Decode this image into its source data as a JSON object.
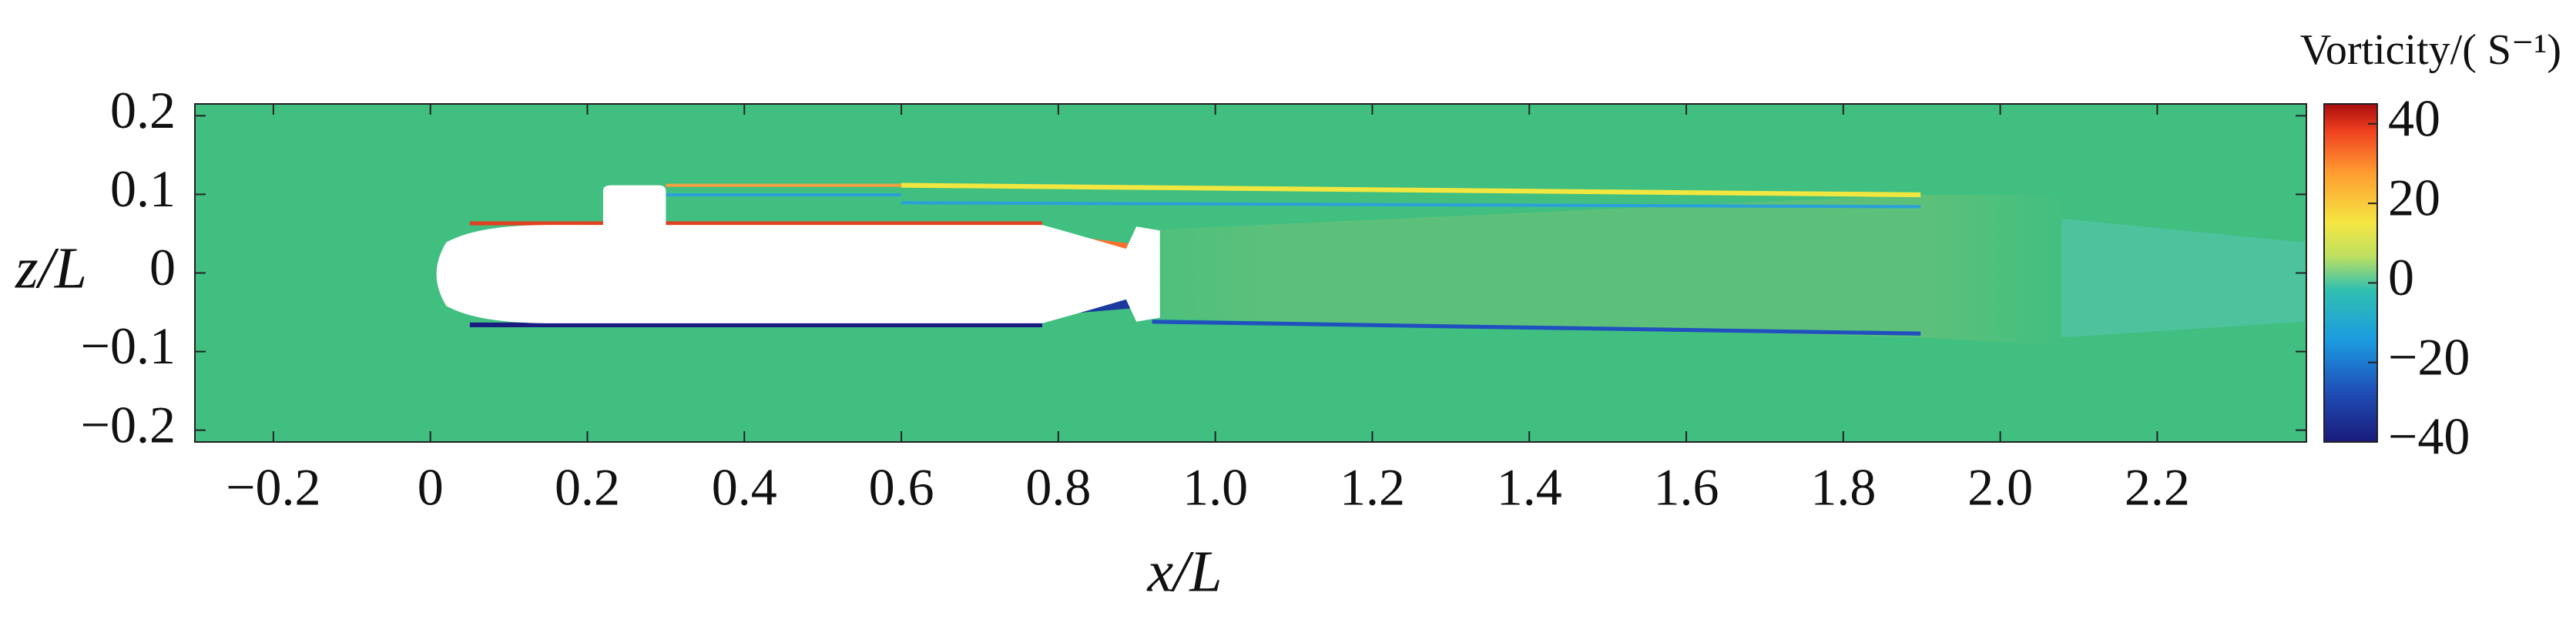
{
  "chart_data": {
    "type": "contour",
    "xlabel": "x/L",
    "ylabel": "z/L",
    "xlim": [
      -0.3,
      2.39
    ],
    "ylim": [
      -0.215,
      0.215
    ],
    "xticks": [
      {
        "value": -0.2,
        "label": "−0.2"
      },
      0,
      0.2,
      0.4,
      0.6,
      0.8,
      {
        "value": 1,
        "label": "1.0"
      },
      1.2,
      1.4,
      1.6,
      1.8,
      {
        "value": 2,
        "label": "2.0"
      },
      2.2
    ],
    "yticks": [
      {
        "value": -0.2,
        "label": "−0.2"
      },
      {
        "value": -0.1,
        "label": "−0.1"
      },
      0,
      0.1,
      0.2
    ],
    "colorbar": {
      "title": "Vorticity/( S⁻¹)",
      "clim": [
        -40,
        45
      ],
      "ticks": [
        {
          "value": -40,
          "label": "−40"
        },
        {
          "value": -20,
          "label": "−20"
        },
        0,
        20,
        40
      ]
    }
  }
}
